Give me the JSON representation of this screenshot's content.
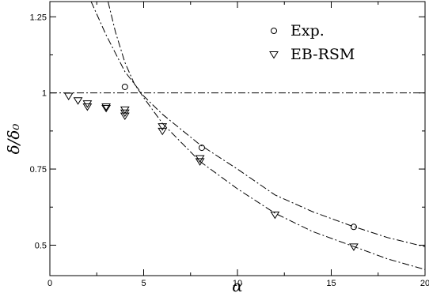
{
  "chart_data": {
    "type": "scatter",
    "xlabel": "α",
    "ylabel": "δ/δ₀",
    "xlim": [
      0,
      20
    ],
    "ylim": [
      0.4,
      1.3
    ],
    "x_ticks": [
      0,
      5,
      10,
      15,
      20
    ],
    "x_tick_labels": [
      "0",
      "5",
      "10",
      "15",
      "20"
    ],
    "y_ticks": [
      0.5,
      0.75,
      1,
      1.25
    ],
    "y_tick_labels": [
      "0.5",
      "0.75",
      "1",
      "1.25"
    ],
    "grid": false,
    "legend_position": "top-right",
    "series": [
      {
        "name": "Exp.",
        "marker": "circle",
        "points": [
          [
            4.0,
            1.02
          ],
          [
            8.1,
            0.82
          ],
          [
            16.2,
            0.56
          ]
        ]
      },
      {
        "name": "EB-RSM",
        "marker": "triangle-down",
        "points": [
          [
            1.0,
            0.99
          ],
          [
            1.5,
            0.975
          ],
          [
            2.0,
            0.965
          ],
          [
            2.0,
            0.955
          ],
          [
            3.0,
            0.955
          ],
          [
            3.0,
            0.95
          ],
          [
            4.0,
            0.945
          ],
          [
            4.0,
            0.935
          ],
          [
            4.0,
            0.925
          ],
          [
            6.0,
            0.89
          ],
          [
            6.0,
            0.875
          ],
          [
            8.0,
            0.785
          ],
          [
            8.0,
            0.775
          ],
          [
            12.0,
            0.6
          ],
          [
            16.2,
            0.495
          ]
        ]
      }
    ],
    "reference_lines": [
      {
        "style": "dash-dot",
        "orientation": "horizontal",
        "y": 1.0
      },
      {
        "style": "dash-dot",
        "curve": "upper",
        "points": [
          [
            2.2,
            1.3
          ],
          [
            3.0,
            1.19
          ],
          [
            4.0,
            1.07
          ],
          [
            5.0,
            0.99
          ],
          [
            6.0,
            0.93
          ],
          [
            8.0,
            0.83
          ],
          [
            10.0,
            0.75
          ],
          [
            12.0,
            0.665
          ],
          [
            14.0,
            0.61
          ],
          [
            16.0,
            0.565
          ],
          [
            18.0,
            0.525
          ],
          [
            20.0,
            0.495
          ]
        ]
      },
      {
        "style": "dash-dot",
        "curve": "lower",
        "points": [
          [
            3.1,
            1.3
          ],
          [
            3.5,
            1.2
          ],
          [
            4.0,
            1.1
          ],
          [
            4.5,
            1.03
          ],
          [
            5.0,
            0.985
          ],
          [
            6.0,
            0.9
          ],
          [
            8.0,
            0.775
          ],
          [
            10.0,
            0.685
          ],
          [
            12.0,
            0.605
          ],
          [
            14.0,
            0.545
          ],
          [
            16.0,
            0.5
          ],
          [
            18.0,
            0.455
          ],
          [
            20.0,
            0.42
          ]
        ]
      }
    ]
  }
}
